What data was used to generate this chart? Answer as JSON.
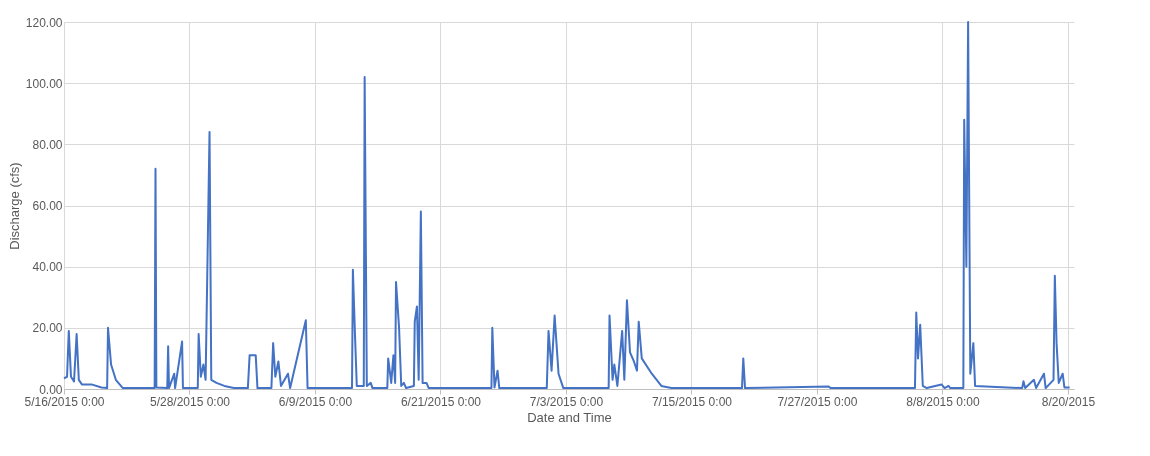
{
  "chart_data": {
    "type": "line",
    "xlabel": "Date and Time",
    "ylabel": "Discharge (cfs)",
    "x": [
      "2015-05-16T00:00",
      "2015-05-16T07:00",
      "2015-05-16T11:00",
      "2015-05-16T16:00",
      "2015-05-16T23:00",
      "2015-05-17T05:00",
      "2015-05-17T10:00",
      "2015-05-17T17:00",
      "2015-05-18T15:00",
      "2015-05-19T14:00",
      "2015-05-20T03:00",
      "2015-05-20T05:00",
      "2015-05-20T12:00",
      "2015-05-20T23:00",
      "2015-05-21T15:00",
      "2015-05-24T16:00",
      "2015-05-24T18:00",
      "2015-05-24T20:00",
      "2015-05-25T21:00",
      "2015-05-25T23:00",
      "2015-05-26T01:00",
      "2015-05-26T13:00",
      "2015-05-26T15:00",
      "2015-05-27T07:00",
      "2015-05-27T09:00",
      "2015-05-28T19:00",
      "2015-05-28T21:00",
      "2015-05-29T02:00",
      "2015-05-29T08:00",
      "2015-05-29T13:00",
      "2015-05-29T22:00",
      "2015-05-30T02:00",
      "2015-05-30T14:00",
      "2015-05-31T08:00",
      "2015-06-01T06:00",
      "2015-06-02T14:00",
      "2015-06-02T18:00",
      "2015-06-03T08:00",
      "2015-06-03T12:00",
      "2015-06-04T20:00",
      "2015-06-05T00:00",
      "2015-06-05T05:00",
      "2015-06-05T12:00",
      "2015-06-05T18:00",
      "2015-06-06T10:00",
      "2015-06-06T15:00",
      "2015-06-08T03:00",
      "2015-06-08T07:00",
      "2015-06-12T13:00",
      "2015-06-12T15:00",
      "2015-06-12T20:00",
      "2015-06-13T00:00",
      "2015-06-13T16:00",
      "2015-06-13T18:00",
      "2015-06-13T23:00",
      "2015-06-14T08:00",
      "2015-06-14T12:00",
      "2015-06-15T22:00",
      "2015-06-16T00:00",
      "2015-06-16T07:00",
      "2015-06-16T12:00",
      "2015-06-16T16:00",
      "2015-06-16T18:00",
      "2015-06-17T01:00",
      "2015-06-17T06:00",
      "2015-06-17T12:00",
      "2015-06-17T17:00",
      "2015-06-18T11:00",
      "2015-06-18T13:00",
      "2015-06-18T18:00",
      "2015-06-18T22:00",
      "2015-06-19T03:00",
      "2015-06-19T07:00",
      "2015-06-19T16:00",
      "2015-06-19T21:00",
      "2015-06-25T21:00",
      "2015-06-25T23:00",
      "2015-06-26T04:00",
      "2015-06-26T11:00",
      "2015-06-26T15:00",
      "2015-07-01T04:00",
      "2015-07-01T08:00",
      "2015-07-01T15:00",
      "2015-07-01T22:00",
      "2015-07-02T07:00",
      "2015-07-02T18:00",
      "2015-07-07T02:00",
      "2015-07-07T04:00",
      "2015-07-07T11:00",
      "2015-07-07T15:00",
      "2015-07-07T22:00",
      "2015-07-08T09:00",
      "2015-07-08T14:00",
      "2015-07-08T20:00",
      "2015-07-09T03:00",
      "2015-07-09T12:00",
      "2015-07-09T19:00",
      "2015-07-09T23:00",
      "2015-07-10T06:00",
      "2015-07-11T05:00",
      "2015-07-12T03:00",
      "2015-07-13T02:00",
      "2015-07-19T20:00",
      "2015-07-19T23:00",
      "2015-07-20T03:00",
      "2015-07-28T03:00",
      "2015-07-28T07:00",
      "2015-08-05T09:00",
      "2015-08-05T12:00",
      "2015-08-05T16:00",
      "2015-08-05T21:00",
      "2015-08-06T03:00",
      "2015-08-06T12:00",
      "2015-08-07T22:00",
      "2015-08-08T05:00",
      "2015-08-08T14:00",
      "2015-08-08T18:00",
      "2015-08-10T00:00",
      "2015-08-10T02:00",
      "2015-08-10T07:00",
      "2015-08-10T11:00",
      "2015-08-10T16:00",
      "2015-08-10T23:00",
      "2015-08-11T03:00",
      "2015-08-15T15:00",
      "2015-08-15T18:00",
      "2015-08-15T22:00",
      "2015-08-16T18:00",
      "2015-08-16T23:00",
      "2015-08-17T17:00",
      "2015-08-17T21:00",
      "2015-08-18T15:00",
      "2015-08-18T18:00",
      "2015-08-18T22:00",
      "2015-08-19T03:00",
      "2015-08-19T12:00",
      "2015-08-19T16:00",
      "2015-08-20T04:00"
    ],
    "series": [
      {
        "color": "#4472c4",
        "values": [
          3.5,
          4,
          19,
          4,
          2.5,
          18,
          3,
          1.5,
          1.5,
          0.5,
          0.3,
          20,
          8,
          3,
          0.3,
          0.3,
          72,
          0.5,
          0.3,
          14,
          0.3,
          5,
          0.3,
          15.5,
          0.3,
          0.3,
          18,
          4,
          8,
          3,
          84,
          3,
          2,
          1,
          0.3,
          0.3,
          11,
          11,
          0.3,
          0.3,
          15,
          4,
          9,
          1,
          5,
          0.3,
          22.5,
          0.3,
          0.3,
          39,
          17,
          1,
          1,
          102,
          1,
          2,
          0.3,
          0.3,
          10,
          2,
          11,
          2,
          35,
          20,
          1,
          2,
          0.3,
          1,
          22,
          27,
          3,
          58,
          2,
          2,
          0.3,
          0.3,
          20,
          0.5,
          6,
          0.3,
          0.3,
          19,
          6,
          24,
          5,
          0.3,
          0.3,
          24,
          3,
          8,
          1,
          19,
          3,
          29,
          12,
          9,
          6,
          22,
          10,
          5,
          1,
          0.3,
          0.3,
          10,
          0.3,
          0.8,
          0.3,
          0.3,
          25,
          10,
          21,
          1,
          0.3,
          1.5,
          0.3,
          1,
          0.3,
          0.3,
          88,
          40,
          120,
          5,
          15,
          1,
          0.3,
          2.5,
          0.3,
          3,
          0.3,
          5,
          0.3,
          3,
          37,
          15,
          2,
          5,
          0.5,
          0.5
        ]
      }
    ],
    "xlim": [
      "2015-05-16T00:00",
      "2015-08-20T14:00"
    ],
    "xticks": [
      {
        "value": "2015-05-16T00:00",
        "label": "5/16/2015 0:00"
      },
      {
        "value": "2015-05-28T00:00",
        "label": "5/28/2015 0:00"
      },
      {
        "value": "2015-06-09T00:00",
        "label": "6/9/2015 0:00"
      },
      {
        "value": "2015-06-21T00:00",
        "label": "6/21/2015 0:00"
      },
      {
        "value": "2015-07-03T00:00",
        "label": "7/3/2015 0:00"
      },
      {
        "value": "2015-07-15T00:00",
        "label": "7/15/2015 0:00"
      },
      {
        "value": "2015-07-27T00:00",
        "label": "7/27/2015 0:00"
      },
      {
        "value": "2015-08-08T00:00",
        "label": "8/8/2015 0:00"
      },
      {
        "value": "2015-08-20T00:00",
        "label": "8/20/2015"
      }
    ],
    "ylim": [
      0,
      120
    ],
    "yticks": [
      {
        "value": 0,
        "label": "0.00"
      },
      {
        "value": 20,
        "label": "20.00"
      },
      {
        "value": 40,
        "label": "40.00"
      },
      {
        "value": 60,
        "label": "60.00"
      },
      {
        "value": 80,
        "label": "80.00"
      },
      {
        "value": 100,
        "label": "100.00"
      },
      {
        "value": 120,
        "label": "120.00"
      }
    ],
    "grid": true,
    "marker": "none",
    "line_style": "solid"
  }
}
